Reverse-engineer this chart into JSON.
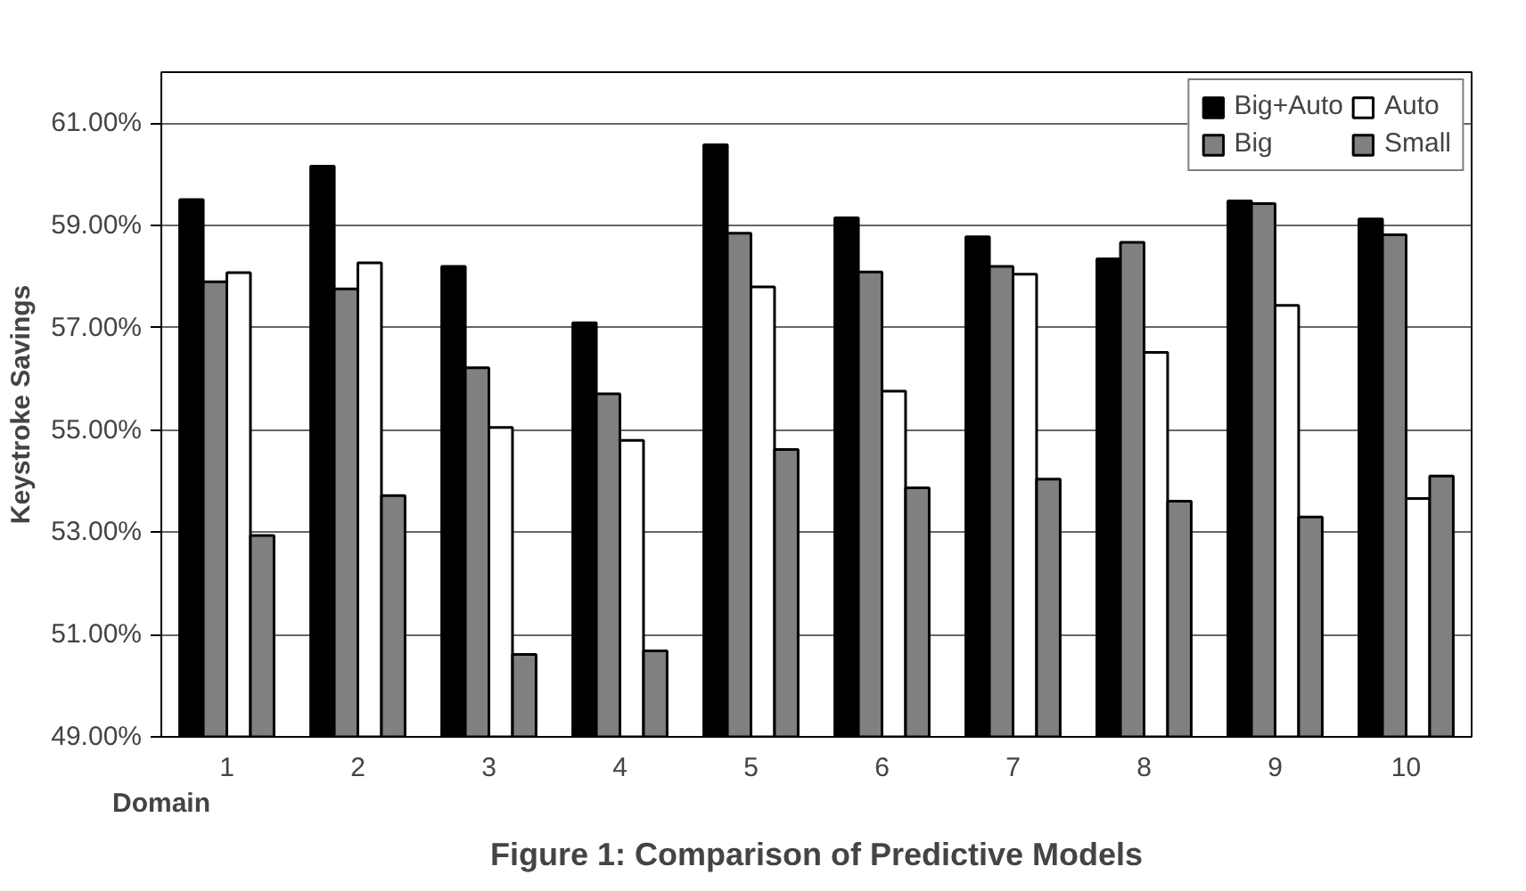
{
  "chart_data": {
    "type": "bar",
    "title": "Figure 1: Comparison of Predictive Models",
    "xlabel": "Domain",
    "ylabel": "Keystroke Savings",
    "categories": [
      "1",
      "2",
      "3",
      "4",
      "5",
      "6",
      "7",
      "8",
      "9",
      "10"
    ],
    "series": [
      {
        "name": "Big+Auto",
        "color": "#000000",
        "values": [
          59.51,
          60.16,
          58.2,
          57.1,
          60.58,
          59.15,
          58.78,
          58.35,
          59.48,
          59.13
        ]
      },
      {
        "name": "Big",
        "color": "#808080",
        "values": [
          57.9,
          57.76,
          56.22,
          55.71,
          58.85,
          58.09,
          58.2,
          58.67,
          59.43,
          58.82
        ]
      },
      {
        "name": "Auto",
        "color": "#ffffff",
        "values": [
          58.08,
          58.27,
          55.05,
          54.8,
          57.8,
          55.76,
          58.05,
          56.52,
          57.44,
          53.66
        ]
      },
      {
        "name": "Small",
        "color": "#808080",
        "values": [
          52.94,
          53.72,
          50.61,
          50.68,
          54.62,
          53.87,
          54.04,
          53.61,
          53.3,
          54.1
        ]
      }
    ],
    "ylim": [
      49,
      62
    ],
    "yticks": [
      {
        "value": 49,
        "label": "49.00%"
      },
      {
        "value": 51,
        "label": "51.00%"
      },
      {
        "value": 53,
        "label": "53.00%"
      },
      {
        "value": 55,
        "label": "55.00%"
      },
      {
        "value": 57,
        "label": "57.00%"
      },
      {
        "value": 59,
        "label": "59.00%"
      },
      {
        "value": 61,
        "label": "61.00%"
      }
    ],
    "grid": "y",
    "legend": "top right"
  }
}
